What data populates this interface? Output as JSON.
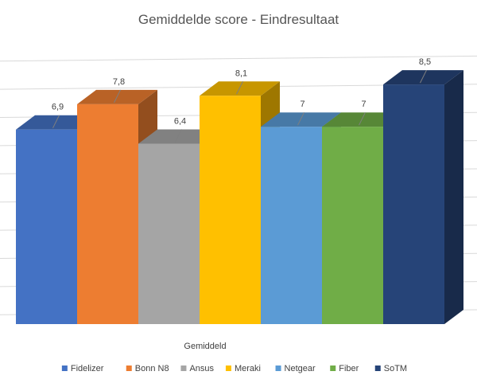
{
  "chart_data": {
    "type": "bar",
    "title": "Gemiddelde score - Eindresultaat",
    "xlabel": "Gemiddeld",
    "ylabel": "",
    "categories": [
      "Gemiddeld"
    ],
    "series": [
      {
        "name": "Fidelizer",
        "values": [
          6.9
        ],
        "label": "6,9",
        "color": "#4472c4"
      },
      {
        "name": "Bonn N8",
        "values": [
          7.8
        ],
        "label": "7,8",
        "color": "#ed7d31"
      },
      {
        "name": "Ansus",
        "values": [
          6.4
        ],
        "label": "6,4",
        "color": "#a5a5a5"
      },
      {
        "name": "Meraki",
        "values": [
          8.1
        ],
        "label": "8,1",
        "color": "#ffc000"
      },
      {
        "name": "Netgear",
        "values": [
          7
        ],
        "label": "7",
        "color": "#5b9bd5"
      },
      {
        "name": "Fiber",
        "values": [
          7
        ],
        "label": "7",
        "color": "#70ad47"
      },
      {
        "name": "SoTM",
        "values": [
          8.5
        ],
        "label": "8,5",
        "color": "#264478"
      }
    ],
    "ylim": [
      0,
      9
    ],
    "grid": true,
    "legend": "bottom",
    "style": "3d-clustered-column"
  }
}
